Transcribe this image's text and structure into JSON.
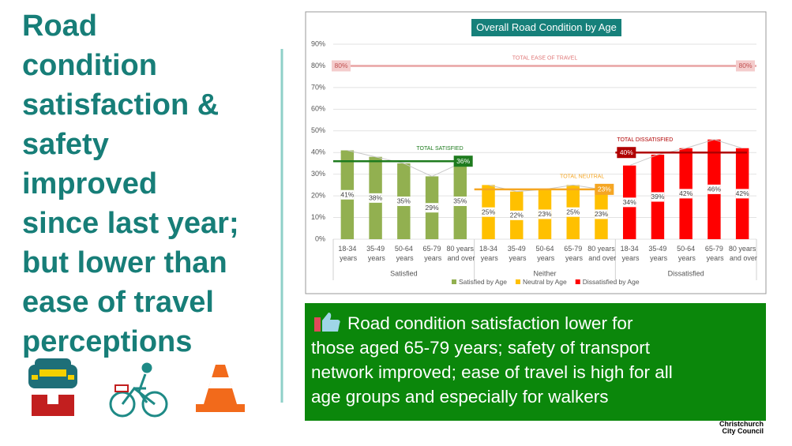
{
  "slide": {
    "headline_lines": [
      "Road",
      "condition",
      "satisfaction &",
      "safety",
      "improved",
      "since last year;",
      "but lower than",
      "ease of travel",
      "perceptions"
    ],
    "callout_lines": [
      "Road condition satisfaction lower for",
      "those aged 65-79 years; safety of transport",
      "network improved; ease of travel is high for all",
      "age groups and especially for walkers"
    ],
    "logo_lines": [
      "Christchurch",
      "City Council"
    ]
  },
  "chart_data": {
    "type": "bar",
    "title": "Overall Road Condition by Age",
    "categories": [
      "18-34 years",
      "35-49 years",
      "50-64 years",
      "65-79 years",
      "80 years and over",
      "18-34 years",
      "35-49 years",
      "50-64 years",
      "65-79 years",
      "80 years and over",
      "18-34 years",
      "35-49 years",
      "50-64 years",
      "65-79 years",
      "80 years and over"
    ],
    "groups": [
      "Satisfied",
      "Neither",
      "Dissatisfied"
    ],
    "series": [
      {
        "name": "Satisfied by Age",
        "color": "#92b050",
        "values": [
          41,
          38,
          35,
          29,
          35,
          null,
          null,
          null,
          null,
          null,
          null,
          null,
          null,
          null,
          null
        ],
        "value_labels": [
          "41%",
          "38%",
          "35%",
          "29%",
          "35%",
          null,
          null,
          null,
          null,
          null,
          null,
          null,
          null,
          null,
          null
        ],
        "total": {
          "label": "TOTAL SATISFIED",
          "value": 36,
          "value_label": "36%",
          "color": "#1e7b1e"
        }
      },
      {
        "name": "Neutral by Age",
        "color": "#ffc000",
        "values": [
          null,
          null,
          null,
          null,
          null,
          25,
          22,
          23,
          25,
          23,
          null,
          null,
          null,
          null,
          null
        ],
        "value_labels": [
          null,
          null,
          null,
          null,
          null,
          "25%",
          "22%",
          "23%",
          "25%",
          "23%",
          null,
          null,
          null,
          null,
          null
        ],
        "total": {
          "label": "TOTAL NEUTRAL",
          "value": 23,
          "value_label": "23%",
          "color": "#f5a623"
        }
      },
      {
        "name": "Dissatisfied by Age",
        "color": "#ff0000",
        "values": [
          null,
          null,
          null,
          null,
          null,
          null,
          null,
          null,
          null,
          null,
          34,
          39,
          42,
          46,
          42
        ],
        "value_labels": [
          null,
          null,
          null,
          null,
          null,
          null,
          null,
          null,
          null,
          null,
          "34%",
          "39%",
          "42%",
          "46%",
          "42%"
        ],
        "total": {
          "label": "TOTAL DISSATISFIED",
          "value": 40,
          "value_label": "40%",
          "color": "#b00000"
        }
      }
    ],
    "reference_line": {
      "label": "TOTAL EASE OF TRAVEL",
      "value": 80,
      "value_label": "80%",
      "color": "#e8a3a3"
    },
    "ylim": [
      0,
      90
    ],
    "yticks": [
      {
        "value": 0,
        "label": "0%"
      },
      {
        "value": 10,
        "label": "10%"
      },
      {
        "value": 20,
        "label": "20%"
      },
      {
        "value": 30,
        "label": "30%"
      },
      {
        "value": 40,
        "label": "40%"
      },
      {
        "value": 50,
        "label": "50%"
      },
      {
        "value": 60,
        "label": "60%"
      },
      {
        "value": 70,
        "label": "70%"
      },
      {
        "value": 80,
        "label": "80%"
      },
      {
        "value": 90,
        "label": "90%"
      }
    ],
    "grid": true,
    "legend": "bottom"
  }
}
